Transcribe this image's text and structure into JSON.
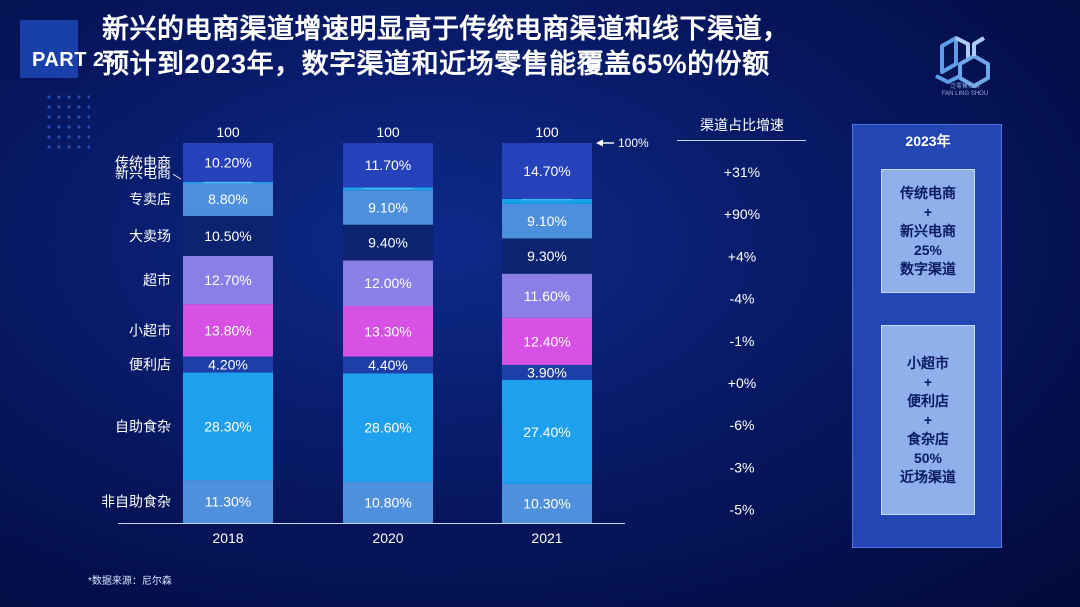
{
  "page": {
    "part_label": "PART 2",
    "title_line1": "新兴的电商渠道增速明显高于传统电商渠道和线下渠道，",
    "title_line2": "预计到2023年，数字渠道和近场零售能覆盖65%的份额",
    "logo_name": "泛零售社群",
    "logo_sub": "FAN LING SHOU",
    "source": "*数据来源：尼尔森"
  },
  "summary_box": {
    "title": "2023年",
    "box1_lines": [
      "传统电商",
      "+",
      "新兴电商",
      "25%",
      "数字渠道"
    ],
    "box2_lines": [
      "小超市",
      "+",
      "便利店",
      "+",
      "食杂店",
      "50%",
      "近场渠道"
    ]
  },
  "chart_data": {
    "type": "bar",
    "stacked": true,
    "categories": [
      "2018",
      "2020",
      "2021"
    ],
    "totals": [
      "100",
      "100",
      "100"
    ],
    "total_marker": "100%",
    "series": [
      {
        "name": "非自助食杂",
        "values": [
          11.3,
          10.8,
          10.3
        ],
        "labels": [
          "11.30%",
          "10.80%",
          "10.30%"
        ],
        "color": "#4f90dc"
      },
      {
        "name": "自助食杂",
        "values": [
          28.3,
          28.6,
          27.4
        ],
        "labels": [
          "28.30%",
          "28.60%",
          "27.40%"
        ],
        "color": "#1fa0ee"
      },
      {
        "name": "便利店",
        "values": [
          4.2,
          4.4,
          3.9
        ],
        "labels": [
          "4.20%",
          "4.40%",
          "3.90%"
        ],
        "color": "#1f3fa8"
      },
      {
        "name": "小超市",
        "values": [
          13.8,
          13.3,
          12.4
        ],
        "labels": [
          "13.80%",
          "13.30%",
          "12.40%"
        ],
        "color": "#d651e4"
      },
      {
        "name": "超市",
        "values": [
          12.7,
          12.0,
          11.6
        ],
        "labels": [
          "12.70%",
          "12.00%",
          "11.60%"
        ],
        "color": "#8b7ee6"
      },
      {
        "name": "大卖场",
        "values": [
          10.5,
          9.4,
          9.3
        ],
        "labels": [
          "10.50%",
          "9.40%",
          "9.30%"
        ],
        "color": "#0c2370"
      },
      {
        "name": "专卖店",
        "values": [
          8.8,
          9.1,
          9.1
        ],
        "labels": [
          "8.80%",
          "9.10%",
          "9.10%"
        ],
        "color": "#4c8fdc"
      },
      {
        "name": "新兴电商",
        "values": [
          0.2,
          0.7,
          1.3
        ],
        "labels": [
          "0.20%",
          "0.70%",
          "1.30%"
        ],
        "color": "#17a3ea"
      },
      {
        "name": "传统电商",
        "values": [
          10.2,
          11.7,
          14.7
        ],
        "labels": [
          "10.20%",
          "11.70%",
          "14.70%"
        ],
        "color": "#2542ba"
      }
    ],
    "growth": {
      "header": "渠道占比增速",
      "values": [
        "+31%",
        "+90%",
        "+4%",
        "-4%",
        "-1%",
        "+0%",
        "-6%",
        "-3%",
        "-5%"
      ]
    }
  }
}
